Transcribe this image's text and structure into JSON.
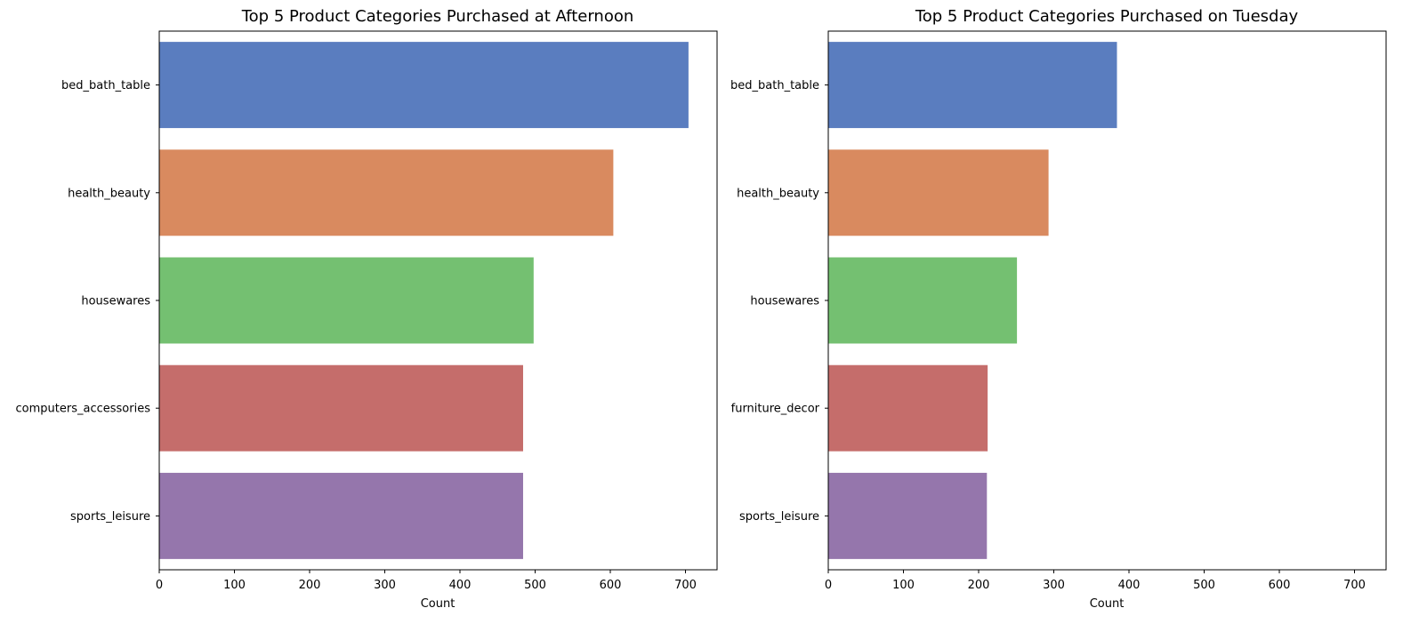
{
  "chart_data": [
    {
      "type": "bar",
      "orientation": "horizontal",
      "title": "Top 5 Product Categories Purchased at Afternoon",
      "xlabel": "Count",
      "ylabel": "",
      "categories": [
        "bed_bath_table",
        "health_beauty",
        "housewares",
        "computers_accessories",
        "sports_leisure"
      ],
      "values": [
        704,
        604,
        498,
        484,
        484
      ],
      "xlim": [
        0,
        742
      ],
      "xticks": [
        0,
        100,
        200,
        300,
        400,
        500,
        600,
        700
      ],
      "grid": false,
      "legend": "none"
    },
    {
      "type": "bar",
      "orientation": "horizontal",
      "title": "Top 5 Product Categories Purchased on Tuesday",
      "xlabel": "Count",
      "ylabel": "",
      "categories": [
        "bed_bath_table",
        "health_beauty",
        "housewares",
        "furniture_decor",
        "sports_leisure"
      ],
      "values": [
        384,
        293,
        251,
        212,
        211
      ],
      "xlim": [
        0,
        742
      ],
      "xticks": [
        0,
        100,
        200,
        300,
        400,
        500,
        600,
        700
      ],
      "grid": false,
      "legend": "none"
    }
  ],
  "colors": [
    "#5a7dbf",
    "#d98a5f",
    "#74c071",
    "#c56d6b",
    "#9576ac"
  ]
}
